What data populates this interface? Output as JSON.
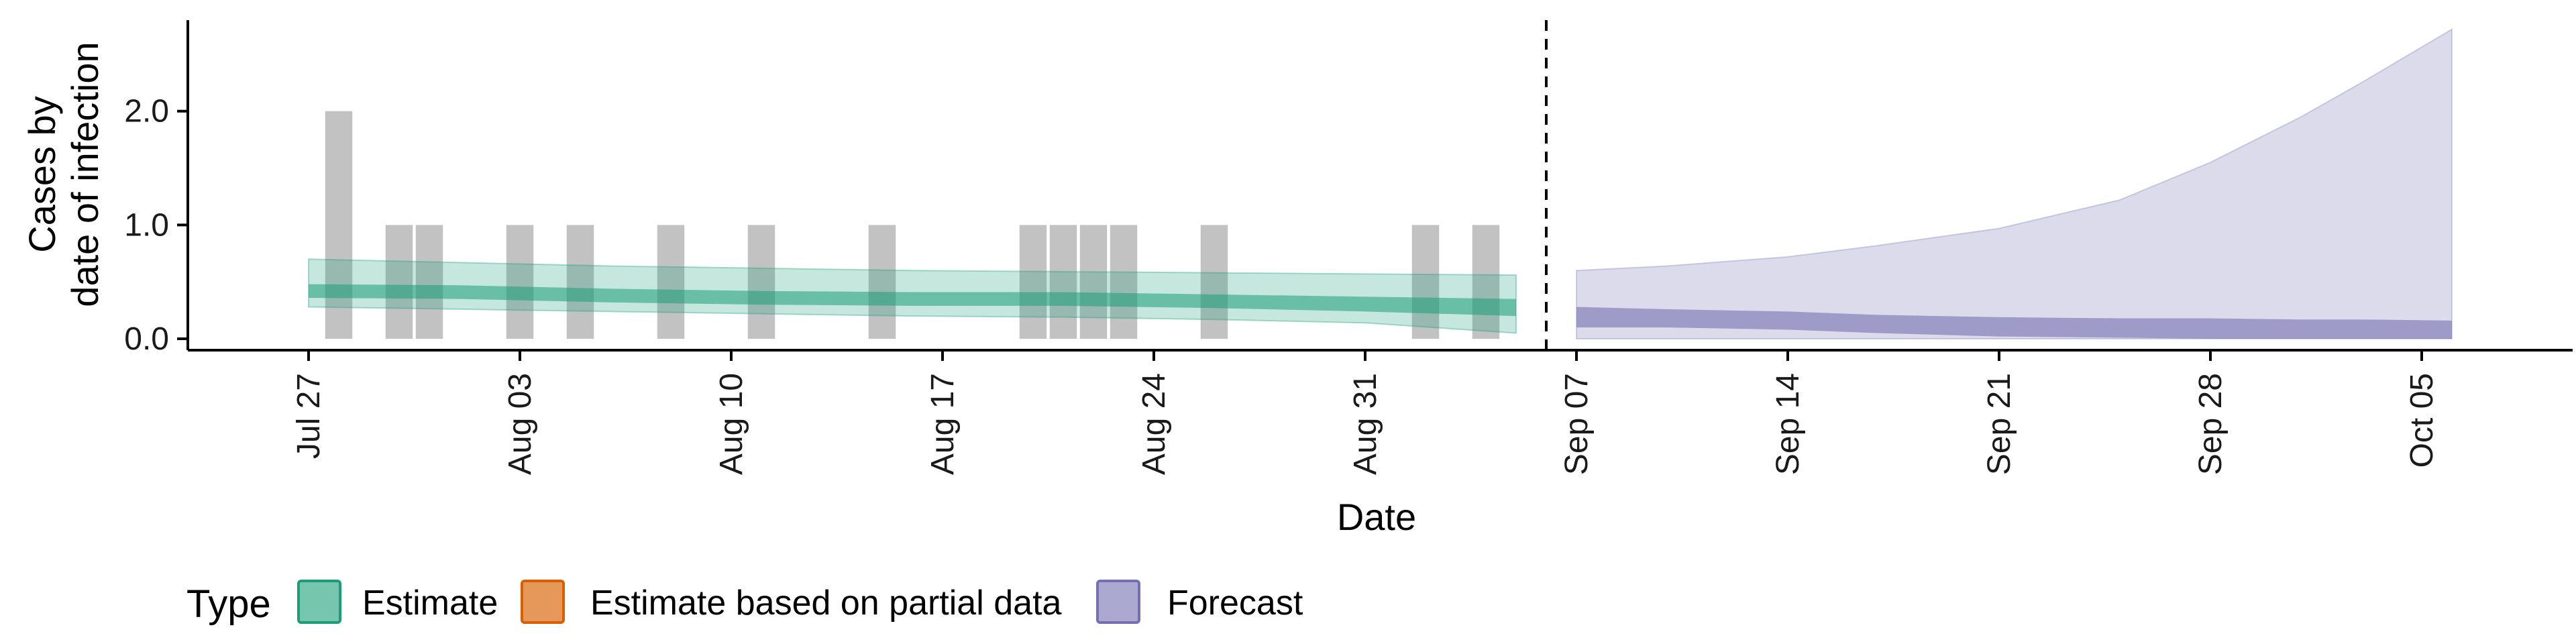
{
  "chart_data": {
    "type": "area",
    "xlabel": "Date",
    "ylabel_lines": [
      "Cases by",
      "date of infection"
    ],
    "x_start": "2020-07-23",
    "x_end": "2020-10-10",
    "ylim": [
      -0.1,
      2.8
    ],
    "y_ticks": [
      0.0,
      1.0,
      2.0
    ],
    "y_tick_labels": [
      "0.0",
      "1.0",
      "2.0"
    ],
    "x_ticks": [
      "2020-07-27",
      "2020-08-03",
      "2020-08-10",
      "2020-08-17",
      "2020-08-24",
      "2020-08-31",
      "2020-09-07",
      "2020-09-14",
      "2020-09-21",
      "2020-09-28",
      "2020-10-05"
    ],
    "x_tick_labels": [
      "Jul 27",
      "Aug 03",
      "Aug 10",
      "Aug 17",
      "Aug 24",
      "Aug 31",
      "Sep 07",
      "Sep 14",
      "Sep 21",
      "Sep 28",
      "Oct 05"
    ],
    "forecast_date": "2020-09-06",
    "reported_cases": {
      "dates": [
        "2020-07-28",
        "2020-07-30",
        "2020-07-31",
        "2020-08-03",
        "2020-08-05",
        "2020-08-08",
        "2020-08-11",
        "2020-08-15",
        "2020-08-20",
        "2020-08-21",
        "2020-08-22",
        "2020-08-23",
        "2020-08-26",
        "2020-09-02",
        "2020-09-04"
      ],
      "values": [
        2,
        1,
        1,
        1,
        1,
        1,
        1,
        1,
        1,
        1,
        1,
        1,
        1,
        1,
        1
      ]
    },
    "series": [
      {
        "name": "Estimate",
        "dates": [
          "2020-07-27",
          "2020-08-01",
          "2020-08-06",
          "2020-08-11",
          "2020-08-16",
          "2020-08-21",
          "2020-08-26",
          "2020-08-31",
          "2020-09-05"
        ],
        "median": [
          0.42,
          0.41,
          0.38,
          0.36,
          0.35,
          0.35,
          0.33,
          0.3,
          0.28
        ],
        "inner": [
          [
            0.36,
            0.48
          ],
          [
            0.35,
            0.47
          ],
          [
            0.32,
            0.44
          ],
          [
            0.3,
            0.42
          ],
          [
            0.29,
            0.41
          ],
          [
            0.29,
            0.41
          ],
          [
            0.27,
            0.39
          ],
          [
            0.24,
            0.37
          ],
          [
            0.2,
            0.35
          ]
        ],
        "outer": [
          [
            0.28,
            0.7
          ],
          [
            0.26,
            0.67
          ],
          [
            0.24,
            0.64
          ],
          [
            0.22,
            0.62
          ],
          [
            0.2,
            0.6
          ],
          [
            0.19,
            0.59
          ],
          [
            0.17,
            0.58
          ],
          [
            0.14,
            0.57
          ],
          [
            0.05,
            0.56
          ]
        ]
      },
      {
        "name": "Estimate based on partial data",
        "dates": [],
        "median": [],
        "inner": [],
        "outer": []
      },
      {
        "name": "Forecast",
        "dates": [
          "2020-09-07",
          "2020-09-10",
          "2020-09-14",
          "2020-09-17",
          "2020-09-21",
          "2020-09-25",
          "2020-09-28",
          "2020-10-01",
          "2020-10-03",
          "2020-10-06"
        ],
        "inner": [
          [
            0.1,
            0.28
          ],
          [
            0.1,
            0.26
          ],
          [
            0.08,
            0.24
          ],
          [
            0.05,
            0.21
          ],
          [
            0.02,
            0.19
          ],
          [
            0.01,
            0.18
          ],
          [
            0.0,
            0.18
          ],
          [
            0.0,
            0.17
          ],
          [
            0.0,
            0.17
          ],
          [
            0.0,
            0.16
          ]
        ],
        "outer": [
          [
            0.0,
            0.6
          ],
          [
            0.0,
            0.64
          ],
          [
            0.0,
            0.72
          ],
          [
            0.0,
            0.82
          ],
          [
            0.0,
            0.97
          ],
          [
            0.0,
            1.22
          ],
          [
            0.0,
            1.55
          ],
          [
            0.0,
            1.95
          ],
          [
            0.0,
            2.25
          ],
          [
            0.0,
            2.72
          ]
        ]
      }
    ],
    "legend": {
      "title": "Type",
      "position": "bottom",
      "items": [
        "Estimate",
        "Estimate based on partial data",
        "Forecast"
      ]
    },
    "colors": {
      "Estimate": "#1b9e77",
      "Estimate based on partial data": "#d95f02",
      "Forecast": "#7570b3",
      "reported_cases": "#999999"
    },
    "grid": false
  }
}
